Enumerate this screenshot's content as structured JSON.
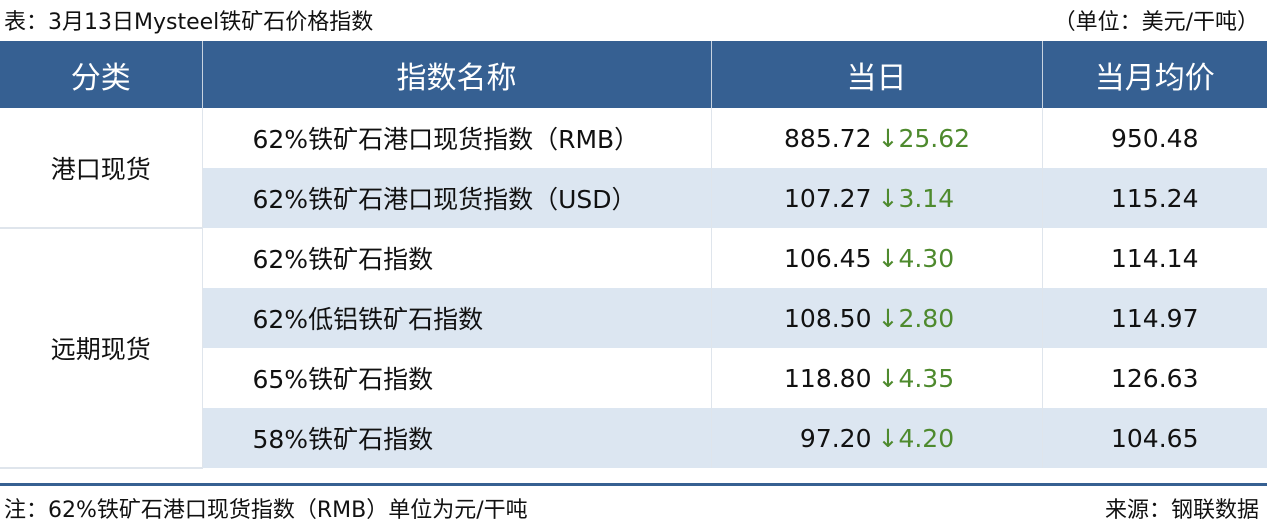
{
  "title": "表：3月13日Mysteel铁矿石价格指数",
  "unit": "（单位：美元/干吨）",
  "headers": [
    "分类",
    "指数名称",
    "当日",
    "当月均价"
  ],
  "groups": [
    "港口现货",
    "远期现货"
  ],
  "rows": [
    {
      "name": "62%铁矿石港口现货指数（RMB）",
      "value": "885.72",
      "arrow": "↓",
      "change": "25.62",
      "avg": "950.48"
    },
    {
      "name": "62%铁矿石港口现货指数（USD）",
      "value": "107.27",
      "arrow": "↓",
      "change": "3.14",
      "avg": "115.24"
    },
    {
      "name": "62%铁矿石指数",
      "value": "106.45",
      "arrow": "↓",
      "change": "4.30",
      "avg": "114.14"
    },
    {
      "name": "62%低铝铁矿石指数",
      "value": "108.50",
      "arrow": "↓",
      "change": "2.80",
      "avg": "114.97"
    },
    {
      "name": "65%铁矿石指数",
      "value": "118.80",
      "arrow": "↓",
      "change": "4.35",
      "avg": "126.63"
    },
    {
      "name": "58%铁矿石指数",
      "value": "97.20",
      "arrow": "↓",
      "change": "4.20",
      "avg": "104.65"
    }
  ],
  "note": "注：62%铁矿石港口现货指数（RMB）单位为元/干吨",
  "source": "来源：钢联数据",
  "colors": {
    "header": "#366092",
    "shade": "#dce6f1",
    "down": "#4e8a2e"
  }
}
